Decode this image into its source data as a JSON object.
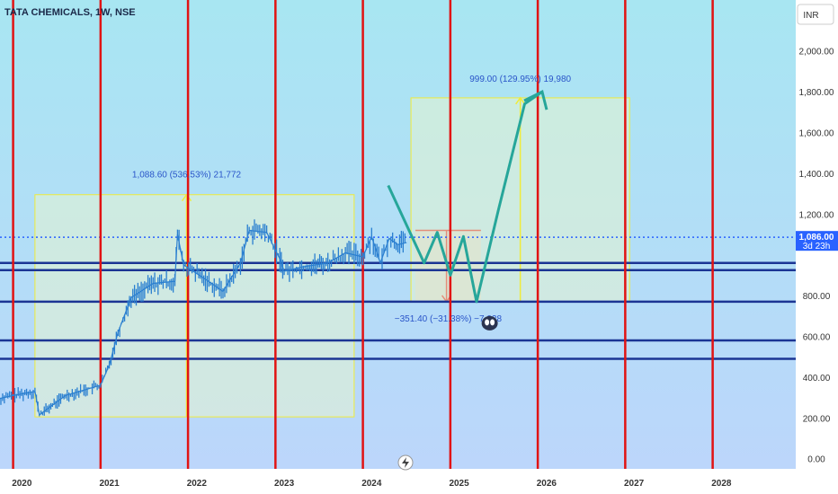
{
  "header": {
    "title": "TATA CHEMICALS, 1W, NSE"
  },
  "currency_button": {
    "label": "INR"
  },
  "price_badge": {
    "price": "1,086.00",
    "countdown": "3d 23h"
  },
  "top_annotation": "999.00 (129.95%) 19,980",
  "left_annotation": "1,088.60 (536.53%) 21,772",
  "bottom_annotation": "−351.40 (−31.38%) −7,028",
  "colors": {
    "bg_top": "#a8e6f2",
    "bg_bottom": "#bcd6fb",
    "red_line": "#e11313",
    "navy_line": "#1b3594",
    "price_line": "#2962ff",
    "candles": "#2a7fd0",
    "projection": "#26a69a",
    "box_fill": "#e6f4cf",
    "box_border": "#f0eb3a"
  },
  "icons": {
    "rocket": "flash-icon",
    "alien": "alien-icon"
  },
  "chart_data": {
    "type": "line",
    "title": "TATA CHEMICALS, 1W, NSE",
    "ylim": [
      -50,
      2250
    ],
    "y_ticks": [
      "0.00",
      "200.00",
      "400.00",
      "600.00",
      "800.00",
      "1,000.00",
      "1,200.00",
      "1,400.00",
      "1,600.00",
      "1,800.00",
      "2,000.00"
    ],
    "y_tick_values": [
      0,
      200,
      400,
      600,
      800,
      1000,
      1200,
      1400,
      1600,
      1800,
      2000
    ],
    "x_ticks": [
      "2020",
      "2021",
      "2022",
      "2023",
      "2024",
      "2025",
      "2026",
      "2027",
      "2028"
    ],
    "x_tick_values": [
      2020,
      2021,
      2022,
      2023,
      2024,
      2025,
      2026,
      2027,
      2028
    ],
    "current_price": 1086,
    "horizontal_levels": [
      960,
      925,
      770,
      580,
      490
    ],
    "vertical_lines": [
      2019.9,
      2020.9,
      2021.9,
      2022.9,
      2023.9,
      2024.9,
      2025.9,
      2026.9,
      2027.9
    ],
    "series": [
      {
        "values_x": [
          2019.7,
          2019.9,
          2020.15,
          2020.2,
          2020.5,
          2020.9,
          2021.0,
          2021.1,
          2021.25,
          2021.5,
          2021.75,
          2021.78,
          2021.85,
          2022.1,
          2022.3,
          2022.5,
          2022.6,
          2022.8,
          2022.95,
          2023.0,
          2023.2,
          2023.5,
          2023.7,
          2023.9,
          2024.0,
          2024.1,
          2024.2,
          2024.3,
          2024.4
        ],
        "values_y": [
          290,
          310,
          330,
          215,
          310,
          360,
          460,
          620,
          790,
          860,
          870,
          1100,
          950,
          880,
          820,
          960,
          1120,
          1110,
          980,
          920,
          940,
          960,
          1010,
          990,
          1090,
          960,
          1080,
          1050,
          1060
        ]
      },
      {
        "values_x": [
          2024.19,
          2024.6,
          2024.75,
          2024.9,
          2025.05,
          2025.2,
          2025.45,
          2025.75,
          2025.95
        ],
        "values_y": [
          1340,
          960,
          1110,
          900,
          1090,
          770,
          1220,
          1740,
          1800
        ]
      }
    ],
    "boxes": [
      {
        "x0": 2020.15,
        "x1": 2023.8,
        "y0": 205,
        "y1": 1295,
        "label": "1,088.60 (536.53%) 21,772"
      },
      {
        "x0": 2024.5,
        "x1": 2025.25,
        "y0": 770,
        "y1": 1120,
        "label": "−351.40 (−31.38%) −7,028"
      },
      {
        "x0": 2024.45,
        "x1": 2026.95,
        "y0": 770,
        "y1": 1770,
        "label": "999.00 (129.95%) 19,980"
      }
    ]
  }
}
